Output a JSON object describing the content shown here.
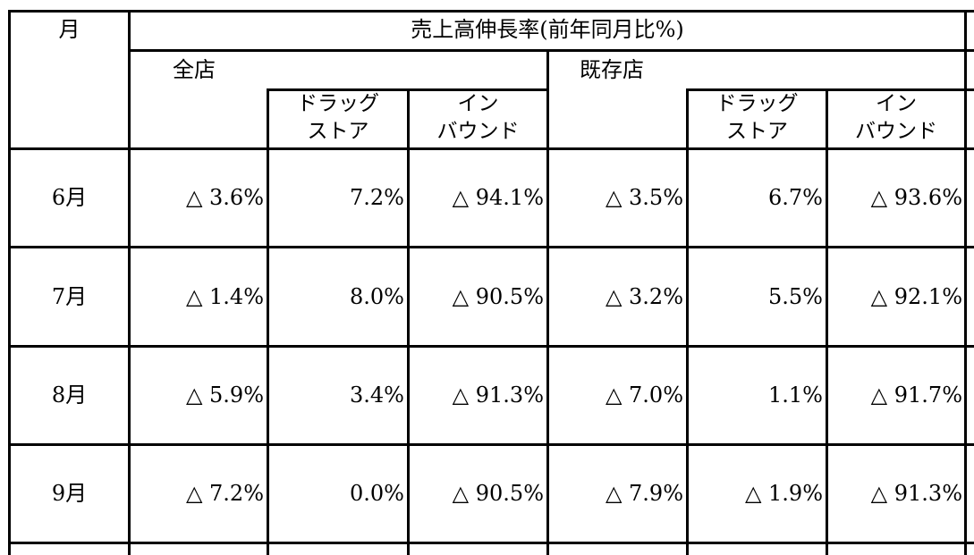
{
  "header": {
    "month_label": "月",
    "title": "売上高伸長率(前年同月比%)",
    "group_all": "全店",
    "group_existing": "既存店",
    "sub_drug_line1": "ドラッグ",
    "sub_drug_line2": "ストア",
    "sub_inbound_line1": "イン",
    "sub_inbound_line2": "バウンド"
  },
  "rows": [
    {
      "month": "6月",
      "all": "△ 3.6%",
      "all_drug": "7.2%",
      "all_inbound": "△ 94.1%",
      "ex": "△ 3.5%",
      "ex_drug": "6.7%",
      "ex_inbound": "△ 93.6%"
    },
    {
      "month": "7月",
      "all": "△ 1.4%",
      "all_drug": "8.0%",
      "all_inbound": "△ 90.5%",
      "ex": "△ 3.2%",
      "ex_drug": "5.5%",
      "ex_inbound": "△ 92.1%"
    },
    {
      "month": "8月",
      "all": "△ 5.9%",
      "all_drug": "3.4%",
      "all_inbound": "△ 91.3%",
      "ex": "△ 7.0%",
      "ex_drug": "1.1%",
      "ex_inbound": "△ 91.7%"
    },
    {
      "month": "9月",
      "all": "△ 7.2%",
      "all_drug": "0.0%",
      "all_inbound": "△ 90.5%",
      "ex": "△ 7.9%",
      "ex_drug": "△ 1.9%",
      "ex_inbound": "△ 91.3%"
    }
  ]
}
